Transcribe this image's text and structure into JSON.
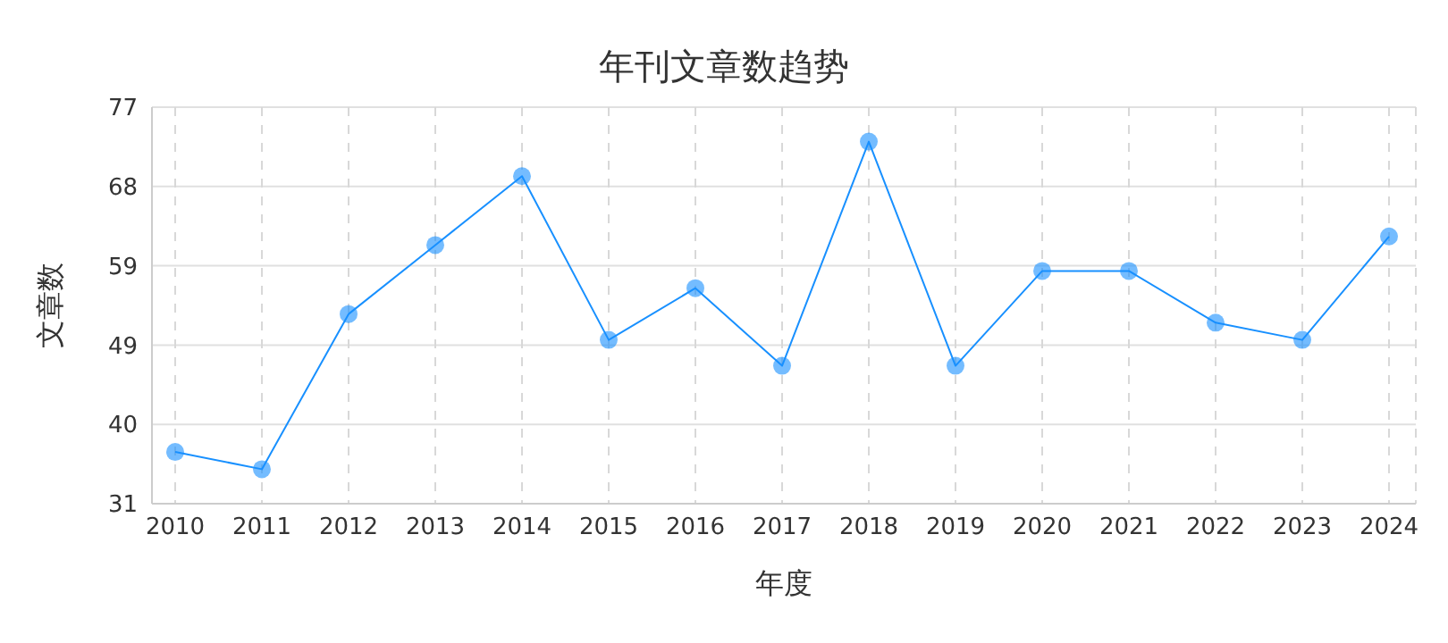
{
  "chart_data": {
    "type": "line",
    "title": "年刊文章数趋势",
    "xlabel": "年度",
    "ylabel": "文章数",
    "categories": [
      "2010",
      "2011",
      "2012",
      "2013",
      "2014",
      "2015",
      "2016",
      "2017",
      "2018",
      "2019",
      "2020",
      "2021",
      "2022",
      "2023",
      "2024"
    ],
    "series": [
      {
        "color": "#1890ff",
        "values": [
          37,
          35,
          53,
          61,
          69,
          50,
          56,
          47,
          73,
          47,
          58,
          58,
          52,
          50,
          62
        ]
      }
    ],
    "ylim": [
      31,
      77
    ],
    "yticks": [
      31,
      {
        "value": 40.2,
        "label": "40"
      },
      {
        "value": 49.4,
        "label": "49"
      },
      {
        "value": 58.6,
        "label": "59"
      },
      {
        "value": 67.8,
        "label": "68"
      },
      77
    ],
    "grid": true,
    "marker": "circle",
    "line_style": "solid"
  }
}
